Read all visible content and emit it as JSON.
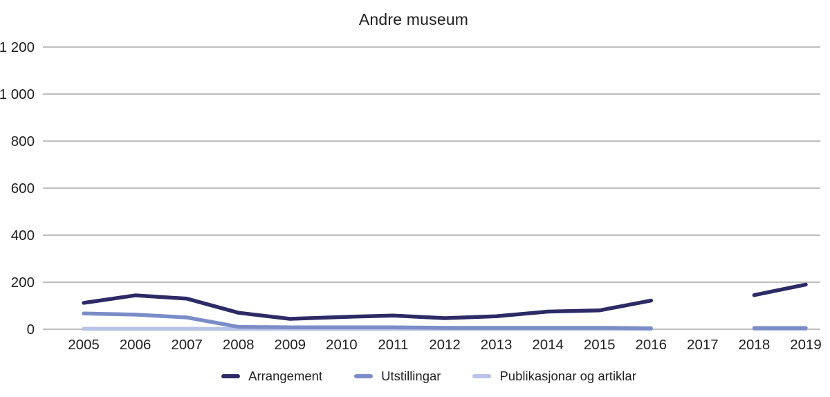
{
  "chart_data": {
    "type": "line",
    "title": "Andre museum",
    "x": [
      2005,
      2006,
      2007,
      2008,
      2009,
      2010,
      2011,
      2012,
      2013,
      2014,
      2015,
      2016,
      2017,
      2018,
      2019
    ],
    "series": [
      {
        "name": "Arrangement",
        "color": "#2c2b66",
        "values": [
          112,
          144,
          130,
          70,
          44,
          52,
          58,
          47,
          55,
          75,
          80,
          122,
          null,
          145,
          190
        ]
      },
      {
        "name": "Utstillingar",
        "color": "#7b8dc7",
        "values": [
          67,
          62,
          50,
          10,
          8,
          8,
          8,
          6,
          6,
          6,
          6,
          4,
          null,
          5,
          5
        ]
      },
      {
        "name": "Publikasjonar og artiklar",
        "color": "#b9c3e7",
        "values": [
          2,
          2,
          2,
          1,
          1,
          1,
          1,
          1,
          1,
          1,
          1,
          1,
          null,
          1,
          1
        ]
      }
    ],
    "ylim": [
      0,
      1200
    ],
    "yticks": [
      0,
      200,
      400,
      600,
      800,
      1000,
      1200
    ],
    "ytick_labels": [
      "0",
      "200",
      "400",
      "600",
      "800",
      "1 000",
      "1 200"
    ],
    "grid": true,
    "legend_position": "bottom",
    "grid_color": "#a8a8a8",
    "text_color": "#1f1f1f"
  }
}
